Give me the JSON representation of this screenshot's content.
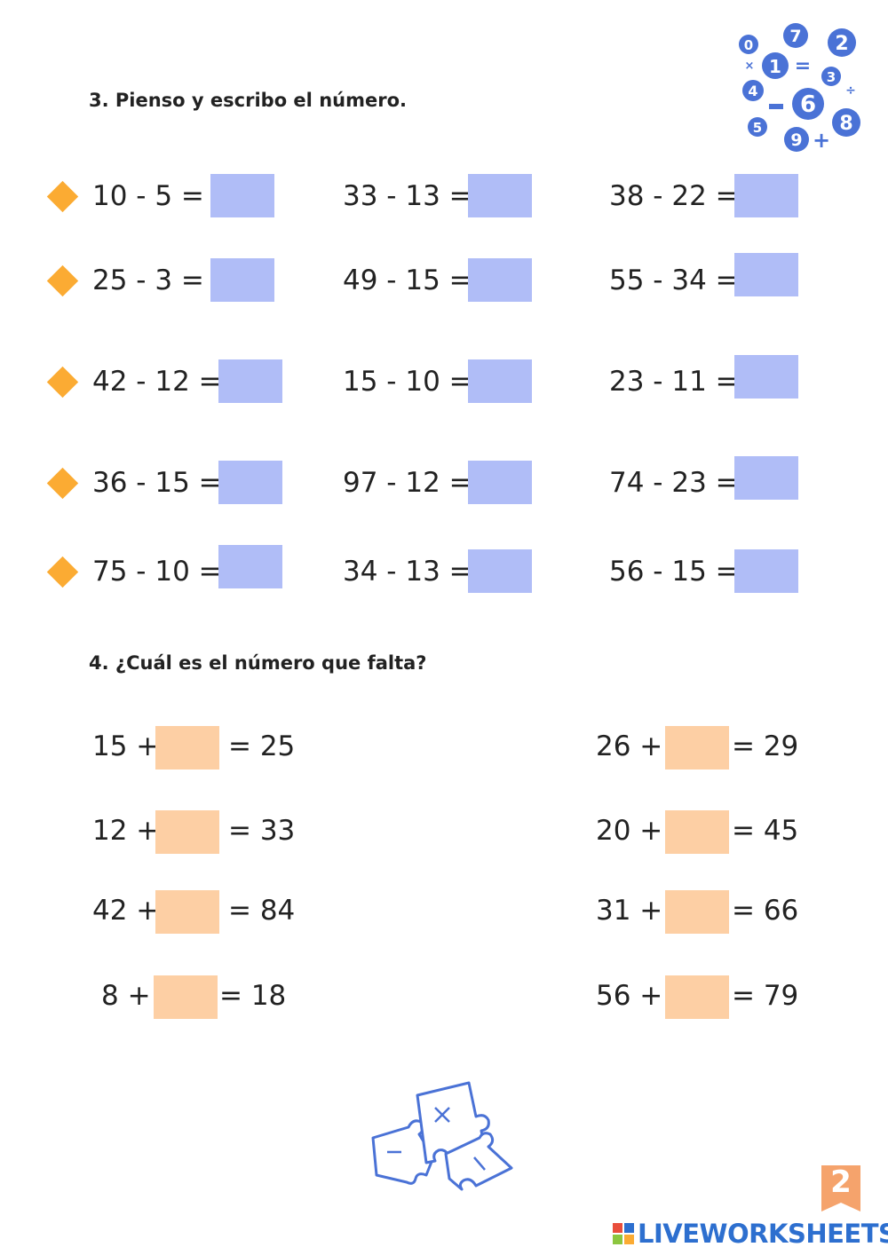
{
  "section3": {
    "title": "3. Pienso y escribo el número.",
    "problems": [
      [
        "10 - 5 =",
        "33 - 13 =",
        "38 - 22 ="
      ],
      [
        "25 - 3 =",
        "49 - 15 =",
        "55 - 34 ="
      ],
      [
        "42 - 12 =",
        "15 - 10 =",
        "23 - 11 ="
      ],
      [
        "36 - 15 =",
        "97 - 12 =",
        "74 - 23 ="
      ],
      [
        "75 - 10 =",
        "34 - 13 =",
        "56 - 15 ="
      ]
    ]
  },
  "section4": {
    "title": "4. ¿Cuál es el número que falta?",
    "left": [
      {
        "a": "15 +",
        "b": "= 25"
      },
      {
        "a": "12 +",
        "b": "= 33"
      },
      {
        "a": "42 +",
        "b": "= 84"
      },
      {
        "a": "8 +",
        "b": "= 18"
      }
    ],
    "right": [
      {
        "a": "26 +",
        "b": "= 29"
      },
      {
        "a": "20 +",
        "b": "= 45"
      },
      {
        "a": "31 +",
        "b": "= 66"
      },
      {
        "a": "56 +",
        "b": "= 79"
      }
    ]
  },
  "footer": {
    "brand": "LIVEWORKSHEETS",
    "page_number": "2"
  },
  "colors": {
    "answer_box_subtraction": "#b0bdf7",
    "answer_box_addition": "#fdcfa4",
    "bullet": "#fbab33",
    "decoration": "#4a72d6",
    "brand": "#2d6fcf"
  },
  "icons": [
    "math-numbers-cluster-icon",
    "puzzle-pieces-icon",
    "diamond-bullet-icon"
  ]
}
